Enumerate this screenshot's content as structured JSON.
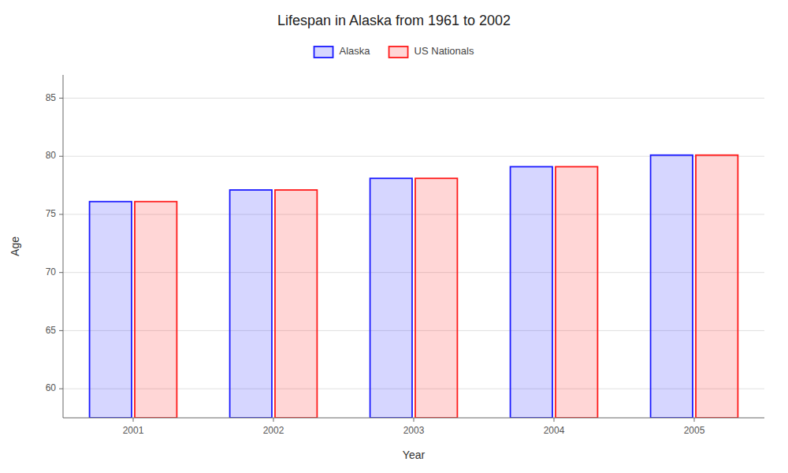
{
  "chart_data": {
    "type": "bar",
    "title": "Lifespan in Alaska from 1961 to 2002",
    "x_label": "Year",
    "y_label": "Age",
    "categories": [
      "2001",
      "2002",
      "2003",
      "2004",
      "2005"
    ],
    "series": [
      {
        "name": "Alaska",
        "color": "#1a1aff",
        "values": [
          76.1,
          77.1,
          78.1,
          79.1,
          80.1
        ]
      },
      {
        "name": "US Nationals",
        "color": "#ff1a1a",
        "values": [
          76.1,
          77.1,
          78.1,
          79.1,
          80.1
        ]
      }
    ],
    "ylim": [
      57.5,
      87
    ],
    "yticks": [
      60,
      65,
      70,
      75,
      80,
      85
    ],
    "grid": true,
    "legend": "top"
  }
}
